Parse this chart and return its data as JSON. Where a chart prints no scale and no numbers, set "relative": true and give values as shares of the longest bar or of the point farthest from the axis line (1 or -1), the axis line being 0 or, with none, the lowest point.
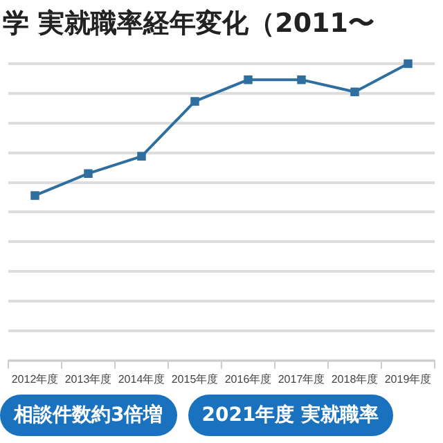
{
  "chart_data": {
    "type": "line",
    "title": "学 実就職率経年変化（2011〜",
    "categories": [
      "2012年度",
      "2013年度",
      "2014年度",
      "2015年度",
      "2016年度",
      "2017年度",
      "2018年度",
      "2019年度"
    ],
    "relative": true,
    "series": [
      {
        "color": "#2f6f9f",
        "values": [
          0.556,
          0.63,
          0.688,
          0.873,
          0.946,
          0.946,
          0.905,
          1
        ]
      }
    ],
    "marker": "square",
    "grid": "y",
    "legend": false,
    "annotations": [
      "相談件数約3倍増",
      "2021年度 実就職率"
    ]
  }
}
